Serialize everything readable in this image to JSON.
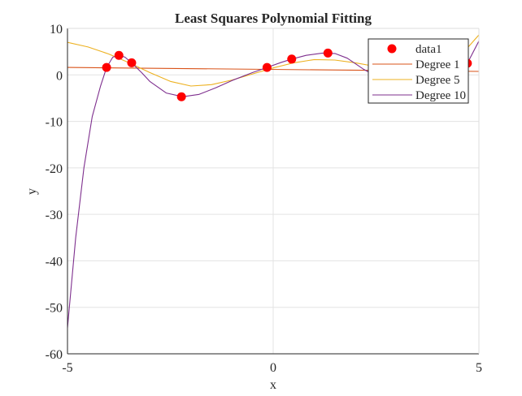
{
  "chart_data": {
    "type": "line",
    "title": "Least Squares Polynomial Fitting",
    "xlabel": "x",
    "ylabel": "y",
    "xlim": [
      -5,
      5
    ],
    "ylim": [
      -60,
      10
    ],
    "xticks": [
      -5,
      0,
      5
    ],
    "yticks": [
      10,
      0,
      -10,
      -20,
      -30,
      -40,
      -50,
      -60
    ],
    "grid": true,
    "legend_position": "top-right",
    "series": [
      {
        "name": "data1",
        "kind": "scatter",
        "color": "#ff0000",
        "x": [
          -4.05,
          -3.75,
          -3.44,
          -2.23,
          -0.15,
          0.45,
          1.33,
          4.72
        ],
        "y": [
          1.6,
          4.2,
          2.6,
          -4.7,
          1.6,
          3.4,
          4.7,
          2.5
        ]
      },
      {
        "name": "Degree 1",
        "kind": "line",
        "color": "#d95319",
        "x": [
          -5,
          5
        ],
        "y": [
          1.6,
          0.75
        ]
      },
      {
        "name": "Degree 5",
        "kind": "line",
        "color": "#edb120",
        "x": [
          -5,
          -4.5,
          -4,
          -3.5,
          -3,
          -2.5,
          -2,
          -1.5,
          -1,
          -0.5,
          0,
          0.5,
          1,
          1.5,
          2,
          2.5,
          3,
          3.5,
          4,
          4.5,
          5
        ],
        "y": [
          7.0,
          6.0,
          4.5,
          2.6,
          0.5,
          -1.4,
          -2.4,
          -2.1,
          -1.1,
          0.2,
          1.5,
          2.6,
          3.3,
          3.2,
          2.6,
          1.8,
          1.0,
          0.8,
          1.5,
          3.6,
          8.6
        ]
      },
      {
        "name": "Degree 10",
        "kind": "line",
        "color": "#7e2f8e",
        "x": [
          -5,
          -4.8,
          -4.6,
          -4.4,
          -4.2,
          -4.05,
          -3.9,
          -3.75,
          -3.6,
          -3.44,
          -3.2,
          -3,
          -2.6,
          -2.2,
          -1.8,
          -1.4,
          -1,
          -0.5,
          -0.15,
          0.2,
          0.45,
          0.8,
          1.2,
          1.5,
          1.8,
          2.2,
          2.5,
          3,
          3.5,
          4,
          4.5,
          4.72,
          5
        ],
        "y": [
          -54.4,
          -35,
          -20,
          -9,
          -2.5,
          1.6,
          3.8,
          4.3,
          3.8,
          2.6,
          0.5,
          -1.4,
          -3.9,
          -4.7,
          -4.2,
          -2.8,
          -1.2,
          0.5,
          1.6,
          2.7,
          3.4,
          4.2,
          4.7,
          4.6,
          3.6,
          1.2,
          -0.3,
          -1.8,
          -1.5,
          -0.5,
          1.3,
          2.5,
          7.3
        ]
      }
    ]
  }
}
